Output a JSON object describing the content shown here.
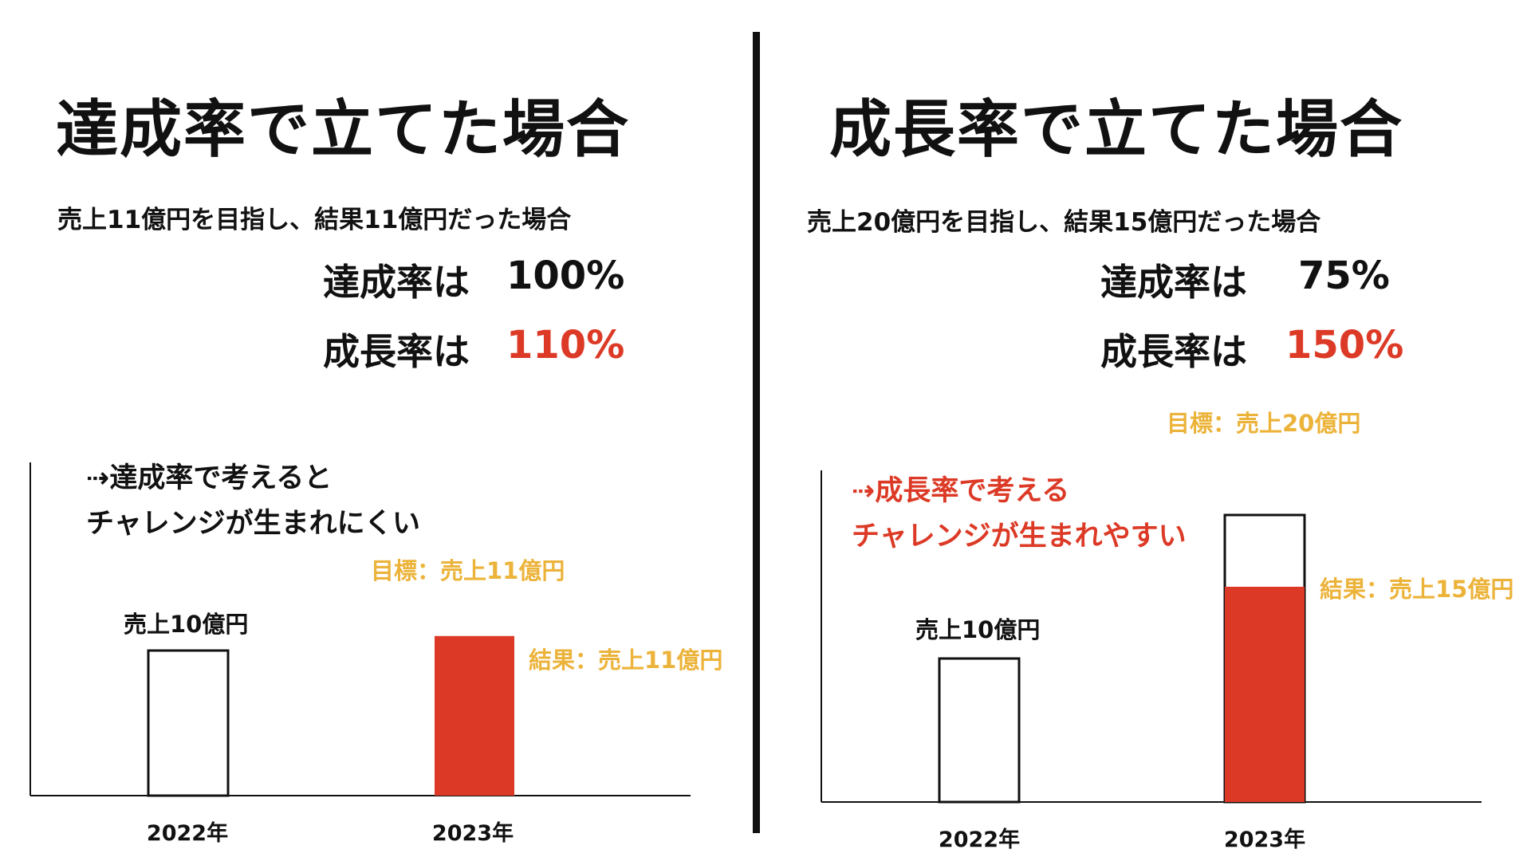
{
  "left": {
    "title": "達成率で立てた場合",
    "subtitle": "売上11億円を目指し、結果11億円だった場合",
    "achievement_label": "達成率は",
    "achievement_value": "100%",
    "growth_label": "成長率は",
    "growth_value": "110%",
    "note_line1": "⇢達成率で考えると",
    "note_line2": "チャレンジが生まれにくい",
    "bar2022_label": "売上10億円",
    "target_label": "目標：売上11億円",
    "result_label": "結果：売上11億円"
  },
  "right": {
    "title": "成長率で立てた場合",
    "subtitle": "売上20億円を目指し、結果15億円だった場合",
    "achievement_label": "達成率は",
    "achievement_value": "75%",
    "growth_label": "成長率は",
    "growth_value": "150%",
    "note_line1": "⇢成長率で考える",
    "note_line2": "チャレンジが生まれやすい",
    "bar2022_label": "売上10億円",
    "target_label": "目標：売上20億円",
    "result_label": "結果：売上15億円"
  },
  "colors": {
    "accent_red": "#dc3a26",
    "accent_amber": "#ecb33a",
    "text": "#111111"
  },
  "chart_data": [
    {
      "type": "bar",
      "categories": [
        "2022年",
        "2023年"
      ],
      "unit": "億円",
      "series": [
        {
          "name": "売上",
          "values": [
            10,
            11
          ]
        },
        {
          "name": "目標",
          "values": [
            null,
            11
          ]
        }
      ],
      "ylim": [
        0,
        11
      ],
      "grid": false
    },
    {
      "type": "bar",
      "categories": [
        "2022年",
        "2023年"
      ],
      "unit": "億円",
      "series": [
        {
          "name": "売上",
          "values": [
            10,
            15
          ]
        },
        {
          "name": "目標",
          "values": [
            null,
            20
          ]
        }
      ],
      "ylim": [
        0,
        20
      ],
      "grid": false
    }
  ]
}
